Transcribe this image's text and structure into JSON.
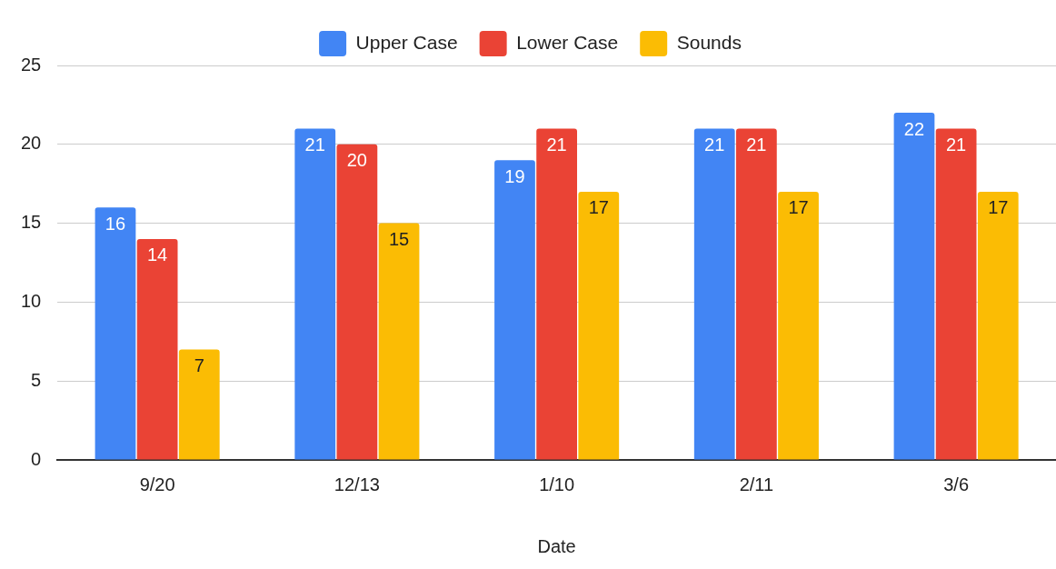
{
  "chart_data": {
    "type": "bar",
    "xlabel": "Date",
    "categories": [
      "9/20",
      "12/13",
      "1/10",
      "2/11",
      "3/6"
    ],
    "series": [
      {
        "name": "Upper Case",
        "color": "#4285f4",
        "values": [
          16,
          21,
          19,
          21,
          22
        ]
      },
      {
        "name": "Lower Case",
        "color": "#ea4335",
        "values": [
          14,
          20,
          21,
          21,
          21
        ]
      },
      {
        "name": "Sounds",
        "color": "#fbbc04",
        "values": [
          7,
          15,
          17,
          17,
          17
        ]
      }
    ],
    "ylim": [
      0,
      25
    ],
    "yticks": [
      0,
      5,
      10,
      15,
      20,
      25
    ],
    "grid": "y",
    "legend": "top",
    "data_labels": true
  }
}
